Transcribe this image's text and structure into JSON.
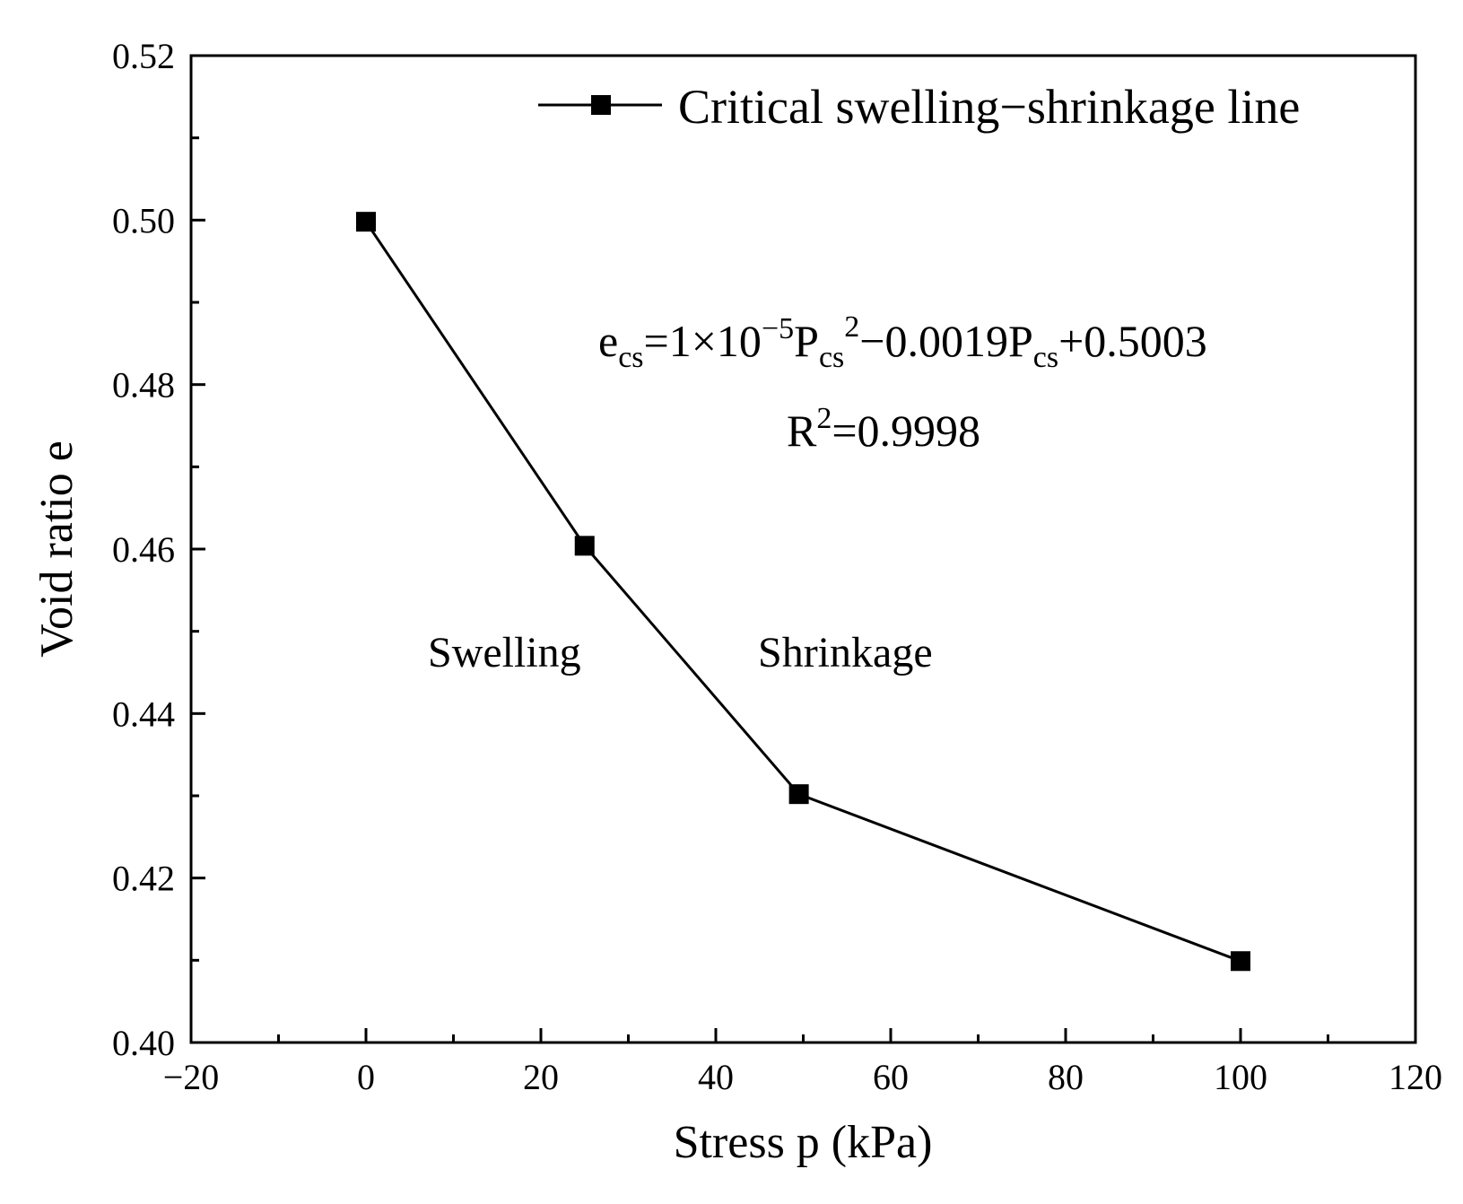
{
  "chart_data": {
    "type": "line",
    "xlabel": "Stress p (kPa)",
    "ylabel": "Void ratio e",
    "xlim": [
      -20,
      120
    ],
    "ylim": [
      0.4,
      0.52
    ],
    "x_ticks": [
      "−20",
      "0",
      "20",
      "40",
      "60",
      "80",
      "100",
      "120"
    ],
    "y_ticks": [
      "0.40",
      "0.42",
      "0.44",
      "0.46",
      "0.48",
      "0.50",
      "0.52"
    ],
    "grid": false,
    "legend_position": "top-right",
    "series": [
      {
        "name": "Critical swelling−shrinkage line",
        "color": "#000000",
        "marker": "square",
        "x": [
          0,
          25,
          49.5,
          100
        ],
        "y": [
          0.4998,
          0.4604,
          0.4302,
          0.4099
        ]
      }
    ],
    "annotations": {
      "equation": {
        "e": "e",
        "e_sub": "cs",
        "part1": "=1×10",
        "exp": "−5",
        "p1": "P",
        "p1_sub": "cs",
        "p1_sup": "2",
        "part2": "−0.0019P",
        "p2_sub": "cs",
        "part3": "+0.5003"
      },
      "r2": {
        "r": "R",
        "sup": "2",
        "value": "=0.9998"
      },
      "region_left": "Swelling",
      "region_right": "Shrinkage"
    }
  }
}
